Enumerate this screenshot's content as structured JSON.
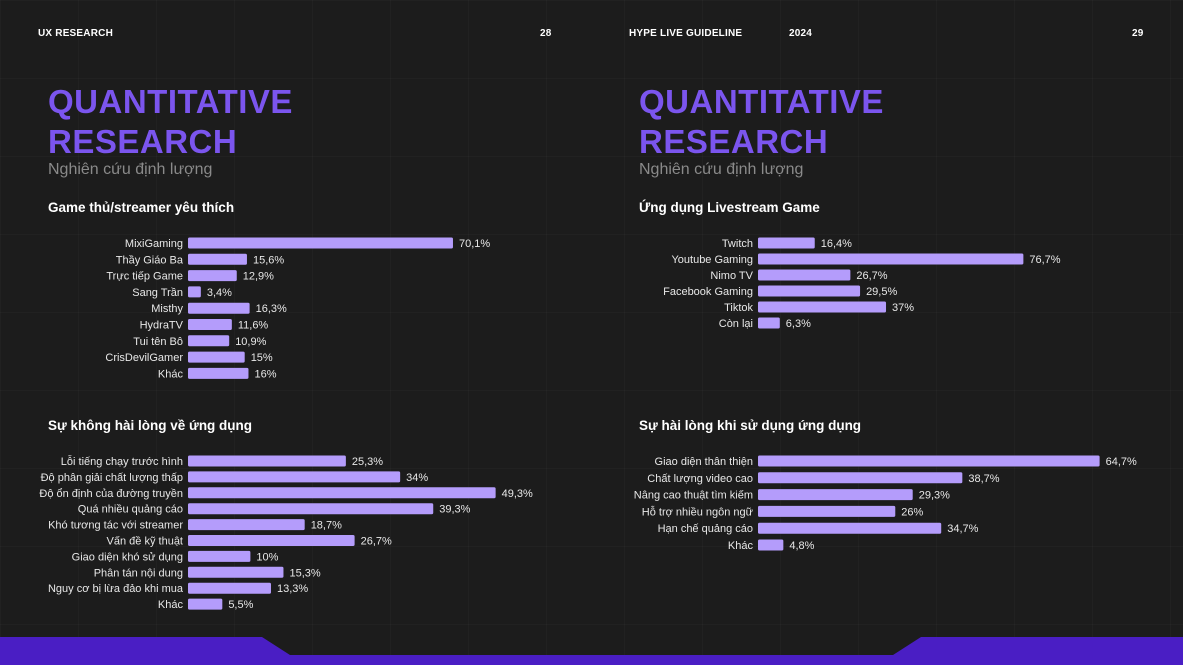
{
  "header": {
    "left_title": "UX RESEARCH",
    "left_page": "28",
    "right_title": "HYPE LIVE GUIDELINE",
    "year": "2024",
    "right_page": "29"
  },
  "left_page": {
    "title_line1": "QUANTITATIVE",
    "title_line2": "RESEARCH",
    "subtitle": "Nghiên cứu định lượng"
  },
  "right_page": {
    "title_line1": "QUANTITATIVE",
    "title_line2": "RESEARCH",
    "subtitle": "Nghiên cứu định lượng"
  },
  "colors": {
    "accent": "#7b55ee",
    "bar": "#b49cfb",
    "background": "#1c1c1c",
    "footer": "#4a1ec4"
  },
  "chart_data": [
    {
      "type": "bar",
      "orientation": "horizontal",
      "title": "Game thủ/streamer yêu thích",
      "categories": [
        "MixiGaming",
        "Thầy Giáo Ba",
        "Trực tiếp Game",
        "Sang Trần",
        "Misthy",
        "HydraTV",
        "Tui tên Bô",
        "CrisDevilGamer",
        "Khác"
      ],
      "values": [
        70.1,
        15.6,
        12.9,
        3.4,
        16.3,
        11.6,
        10.9,
        15,
        16
      ],
      "value_labels": [
        "70,1%",
        "15,6%",
        "12,9%",
        "3,4%",
        "16,3%",
        "11,6%",
        "10,9%",
        "15%",
        "16%"
      ]
    },
    {
      "type": "bar",
      "orientation": "horizontal",
      "title": "Ứng dụng Livestream Game",
      "categories": [
        "Twitch",
        "Youtube Gaming",
        "Nimo TV",
        "Facebook Gaming",
        "Tiktok",
        "Còn lại"
      ],
      "values": [
        16.4,
        76.7,
        26.7,
        29.5,
        37,
        6.3
      ],
      "value_labels": [
        "16,4%",
        "76,7%",
        "26,7%",
        "29,5%",
        "37%",
        "6,3%"
      ]
    },
    {
      "type": "bar",
      "orientation": "horizontal",
      "title": "Sự không hài lòng về ứng dụng",
      "categories": [
        "Lỗi tiếng chạy trước hình",
        "Độ phân giải chất lượng thấp",
        "Độ ổn định của đường truyền",
        "Quá nhiều quảng cáo",
        "Khó tương tác với streamer",
        "Vấn đề kỹ thuật",
        "Giao diện khó sử dụng",
        "Phân tán nội dung",
        "Nguy cơ bị lừa đảo khi mua",
        "Khác"
      ],
      "values": [
        25.3,
        34,
        49.3,
        39.3,
        18.7,
        26.7,
        10,
        15.3,
        13.3,
        5.5
      ],
      "value_labels": [
        "25,3%",
        "34%",
        "49,3%",
        "39,3%",
        "18,7%",
        "26,7%",
        "10%",
        "15,3%",
        "13,3%",
        "5,5%"
      ]
    },
    {
      "type": "bar",
      "orientation": "horizontal",
      "title": "Sự hài lòng khi sử dụng ứng dụng",
      "categories": [
        "Giao diện thân thiện",
        "Chất lượng video cao",
        "Nâng cao thuật tìm kiếm",
        "Hỗ trợ nhiều ngôn ngữ",
        "Hạn chế quảng cáo",
        "Khác"
      ],
      "values": [
        64.7,
        38.7,
        29.3,
        26,
        34.7,
        4.8
      ],
      "value_labels": [
        "64,7%",
        "38,7%",
        "29,3%",
        "26%",
        "34,7%",
        "4,8%"
      ]
    }
  ]
}
